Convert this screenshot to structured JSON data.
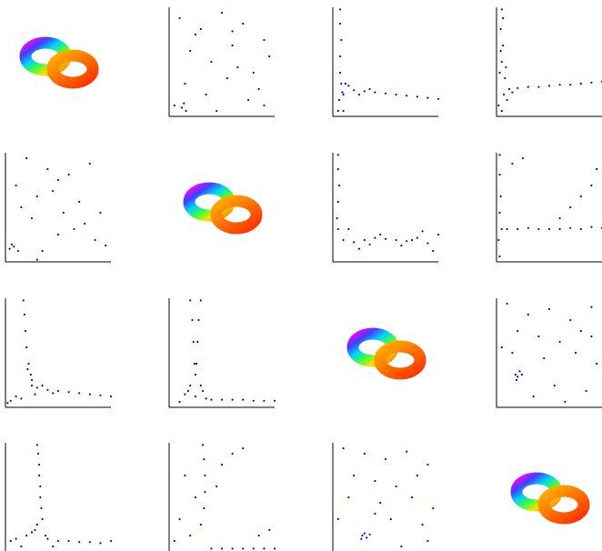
{
  "chart_data": [
    {
      "type": "torus"
    },
    {
      "type": "scatter",
      "color": "#0000ff",
      "xlim": [
        0,
        1
      ],
      "ylim": [
        0,
        1
      ],
      "x": [
        0.1,
        0.3,
        0.5,
        0.7,
        0.9,
        0.2,
        0.4,
        0.6,
        0.8,
        0.15,
        0.35,
        0.55,
        0.75,
        0.95,
        0.25,
        0.45,
        0.65,
        0.85,
        0.05,
        0.12,
        0.14,
        0.16,
        0.6,
        0.9
      ],
      "y": [
        0.9,
        0.8,
        0.95,
        0.85,
        0.7,
        0.6,
        0.5,
        0.65,
        0.4,
        0.3,
        0.2,
        0.35,
        0.15,
        0.55,
        0.75,
        0.05,
        0.45,
        0.25,
        0.1,
        0.08,
        0.12,
        0.05,
        0.78,
        0.1
      ]
    },
    {
      "type": "scatter",
      "color": "#0000ff",
      "xlim": [
        0,
        1
      ],
      "ylim": [
        0,
        1
      ],
      "x": [
        0.07,
        0.07,
        0.08,
        0.07,
        0.07,
        0.08,
        0.09,
        0.06,
        0.1,
        0.2,
        0.3,
        0.4,
        0.5,
        0.6,
        0.7,
        0.8,
        0.9,
        1,
        0.15,
        0.25,
        0.12,
        0.05,
        0.35,
        0.1
      ],
      "y": [
        0.98,
        0.85,
        0.7,
        0.55,
        0.4,
        0.3,
        0.22,
        0.15,
        0.2,
        0.24,
        0.23,
        0.22,
        0.21,
        0.2,
        0.19,
        0.18,
        0.17,
        0.16,
        0.28,
        0.2,
        0.3,
        0.05,
        0.25,
        0.05
      ]
    },
    {
      "type": "scatter",
      "color": "#0000ff",
      "xlim": [
        0,
        1
      ],
      "ylim": [
        0,
        1
      ],
      "x": [
        0.05,
        0.04,
        0.06,
        0.05,
        0.03,
        0.08,
        0.07,
        0.02,
        0.1,
        0.05,
        0.2,
        0.3,
        0.4,
        0.5,
        0.6,
        0.7,
        0.8,
        0.9,
        1,
        0.12,
        0.06,
        0.09,
        0.04,
        0.15
      ],
      "y": [
        0.98,
        0.8,
        0.65,
        0.5,
        0.4,
        0.35,
        0.2,
        0.1,
        0.15,
        0.05,
        0.26,
        0.27,
        0.27,
        0.28,
        0.29,
        0.29,
        0.3,
        0.31,
        0.32,
        0.25,
        0.9,
        0.45,
        0.6,
        0.22
      ]
    },
    {
      "type": "scatter",
      "color": "#0000ff",
      "xlim": [
        0,
        1
      ],
      "ylim": [
        0,
        1
      ],
      "x": [
        0.2,
        0.4,
        0.6,
        0.8,
        0.1,
        0.3,
        0.5,
        0.7,
        0.9,
        0.25,
        0.45,
        0.65,
        0.85,
        0.15,
        0.35,
        0.55,
        0.75,
        0.95,
        0.04,
        0.08,
        0.12,
        0.06,
        0.5,
        0.3
      ],
      "y": [
        0.95,
        0.85,
        0.8,
        0.9,
        0.7,
        0.6,
        0.75,
        0.55,
        0.45,
        0.4,
        0.65,
        0.3,
        0.2,
        0.5,
        0.1,
        0.45,
        0.35,
        0.15,
        0.12,
        0.14,
        0.1,
        0.16,
        0.25,
        0.02
      ]
    },
    {
      "type": "torus"
    },
    {
      "type": "scatter",
      "color": "#0000ff",
      "xlim": [
        0,
        1
      ],
      "ylim": [
        0,
        1
      ],
      "x": [
        0.05,
        0.05,
        0.06,
        0.05,
        0.04,
        0.05,
        0.1,
        0.2,
        0.3,
        0.4,
        0.5,
        0.6,
        0.7,
        0.8,
        0.9,
        1,
        0.15,
        0.25,
        0.45,
        0.65,
        0.85,
        0.95,
        0.35,
        0.75
      ],
      "y": [
        0.98,
        0.85,
        0.7,
        0.55,
        0.4,
        0.3,
        0.2,
        0.18,
        0.2,
        0.22,
        0.21,
        0.2,
        0.19,
        0.22,
        0.17,
        0.25,
        0.3,
        0.12,
        0.25,
        0.15,
        0.28,
        0.1,
        0.16,
        0.2
      ]
    },
    {
      "type": "scatter",
      "color": "#0000ff",
      "xlim": [
        0,
        1
      ],
      "ylim": [
        0,
        1
      ],
      "x": [
        0.03,
        0.03,
        0.04,
        0.03,
        0.02,
        0.03,
        0.1,
        0.2,
        0.3,
        0.4,
        0.5,
        0.6,
        0.7,
        0.8,
        0.9,
        1,
        0.6,
        0.7,
        0.8,
        0.9,
        0.95,
        0.15,
        0.25,
        0.05
      ],
      "y": [
        0.98,
        0.8,
        0.6,
        0.45,
        0.2,
        0.05,
        0.3,
        0.3,
        0.31,
        0.3,
        0.3,
        0.3,
        0.31,
        0.3,
        0.32,
        0.31,
        0.4,
        0.5,
        0.6,
        0.7,
        0.85,
        0.9,
        0.95,
        0.3
      ]
    },
    {
      "type": "scatter",
      "color": "#0000ff",
      "xlim": [
        0,
        1
      ],
      "ylim": [
        0,
        1
      ],
      "x": [
        0.17,
        0.18,
        0.19,
        0.2,
        0.22,
        0.24,
        0.25,
        0.3,
        0.4,
        0.5,
        0.6,
        0.7,
        0.8,
        0.9,
        1,
        0.1,
        0.05,
        0.02,
        0.25,
        0.28,
        0.35,
        0.15,
        0.45,
        0.21
      ],
      "y": [
        0.98,
        0.85,
        0.7,
        0.55,
        0.4,
        0.3,
        0.2,
        0.18,
        0.16,
        0.15,
        0.14,
        0.13,
        0.12,
        0.11,
        0.1,
        0.1,
        0.06,
        0.04,
        0.25,
        0.12,
        0.2,
        0.08,
        0.13,
        0.35
      ]
    },
    {
      "type": "scatter",
      "color": "#0000ff",
      "xlim": [
        0,
        1
      ],
      "ylim": [
        0,
        1
      ],
      "x": [
        0.2,
        0.3,
        0.22,
        0.28,
        0.23,
        0.27,
        0.24,
        0.26,
        0.2,
        0.3,
        0.25,
        0.35,
        0.4,
        0.5,
        0.6,
        0.7,
        0.8,
        0.9,
        1,
        0.15,
        0.1,
        0.18,
        0.32,
        0.25
      ],
      "y": [
        0.98,
        0.98,
        0.8,
        0.8,
        0.6,
        0.6,
        0.4,
        0.4,
        0.2,
        0.2,
        0.1,
        0.08,
        0.07,
        0.07,
        0.07,
        0.07,
        0.06,
        0.06,
        0.06,
        0.12,
        0.05,
        0.15,
        0.15,
        0.3
      ]
    },
    {
      "type": "torus"
    },
    {
      "type": "scatter",
      "color": "#0000ff",
      "xlim": [
        0,
        1
      ],
      "ylim": [
        0,
        1
      ],
      "x": [
        0.1,
        0.3,
        0.5,
        0.7,
        0.9,
        0.2,
        0.4,
        0.6,
        0.8,
        0.15,
        0.45,
        0.75,
        0.95,
        0.55,
        0.85,
        0.18,
        0.2,
        0.22,
        0.19,
        0.24,
        0.65,
        0.35,
        0.05,
        0.9
      ],
      "y": [
        0.95,
        0.85,
        0.9,
        0.8,
        0.92,
        0.7,
        0.65,
        0.6,
        0.7,
        0.5,
        0.45,
        0.5,
        0.4,
        0.2,
        0.15,
        0.3,
        0.28,
        0.33,
        0.25,
        0.3,
        0.05,
        0.1,
        0.55,
        0.65
      ]
    },
    {
      "type": "scatter",
      "color": "#0000ff",
      "xlim": [
        0,
        1
      ],
      "ylim": [
        0,
        1
      ],
      "x": [
        0.3,
        0.31,
        0.32,
        0.32,
        0.33,
        0.33,
        0.34,
        0.3,
        0.2,
        0.1,
        0.05,
        0.4,
        0.5,
        0.6,
        0.7,
        0.8,
        0.9,
        1,
        0.25,
        0.38,
        0.15,
        0.45,
        0.35,
        0.28
      ],
      "y": [
        0.98,
        0.9,
        0.8,
        0.7,
        0.6,
        0.5,
        0.4,
        0.25,
        0.15,
        0.12,
        0.1,
        0.12,
        0.1,
        0.1,
        0.09,
        0.09,
        0.08,
        0.1,
        0.18,
        0.15,
        0.05,
        0.05,
        0.3,
        0.2
      ]
    },
    {
      "type": "scatter",
      "color": "#0000ff",
      "xlim": [
        0,
        1
      ],
      "ylim": [
        0,
        1
      ],
      "x": [
        0.32,
        0.33,
        0.34,
        0.34,
        0.33,
        0.3,
        0.2,
        0.1,
        0.05,
        0.4,
        0.5,
        0.6,
        0.7,
        0.8,
        0.9,
        1,
        0.5,
        0.6,
        0.7,
        0.85,
        0.95,
        0.25,
        0.45,
        0.15
      ],
      "y": [
        0.98,
        0.85,
        0.7,
        0.55,
        0.4,
        0.25,
        0.15,
        0.3,
        0.1,
        0.03,
        0.03,
        0.03,
        0.03,
        0.03,
        0.03,
        0.03,
        0.8,
        0.9,
        0.95,
        0.15,
        0.2,
        0.5,
        0.6,
        0.7
      ]
    },
    {
      "type": "scatter",
      "color": "#0000ff",
      "xlim": [
        0,
        1
      ],
      "ylim": [
        0,
        1
      ],
      "x": [
        0.1,
        0.3,
        0.5,
        0.7,
        0.9,
        0.2,
        0.4,
        0.6,
        0.8,
        0.15,
        0.45,
        0.75,
        0.95,
        0.55,
        0.85,
        0.28,
        0.3,
        0.32,
        0.27,
        0.35,
        0.65,
        0.05,
        0.9,
        0.4
      ],
      "y": [
        0.95,
        0.9,
        0.85,
        0.92,
        0.8,
        0.7,
        0.65,
        0.6,
        0.7,
        0.5,
        0.45,
        0.5,
        0.4,
        0.3,
        0.25,
        0.15,
        0.17,
        0.13,
        0.12,
        0.16,
        0.05,
        0.3,
        0.1,
        0.35
      ]
    },
    {
      "type": "torus"
    }
  ]
}
